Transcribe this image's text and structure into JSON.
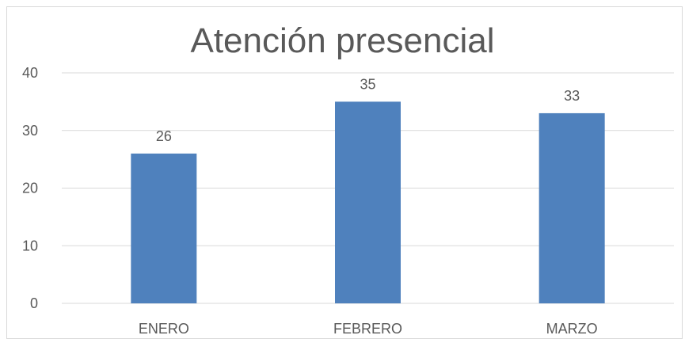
{
  "colors": {
    "bar": "#4f81bd",
    "gridline": "#d9d9d9",
    "text": "#595959",
    "border": "#d9d9d9",
    "background": "#ffffff"
  },
  "chart_data": {
    "type": "bar",
    "title": "Atención presencial",
    "xlabel": "",
    "ylabel": "",
    "categories": [
      "ENERO",
      "FEBRERO",
      "MARZO"
    ],
    "values": [
      26,
      35,
      33
    ],
    "data_labels": [
      "26",
      "35",
      "33"
    ],
    "ylim": [
      0,
      40
    ],
    "yticks": [
      0,
      10,
      20,
      30,
      40
    ],
    "ytick_labels": [
      "0",
      "10",
      "20",
      "30",
      "40"
    ],
    "grid": true,
    "legend": "none"
  }
}
